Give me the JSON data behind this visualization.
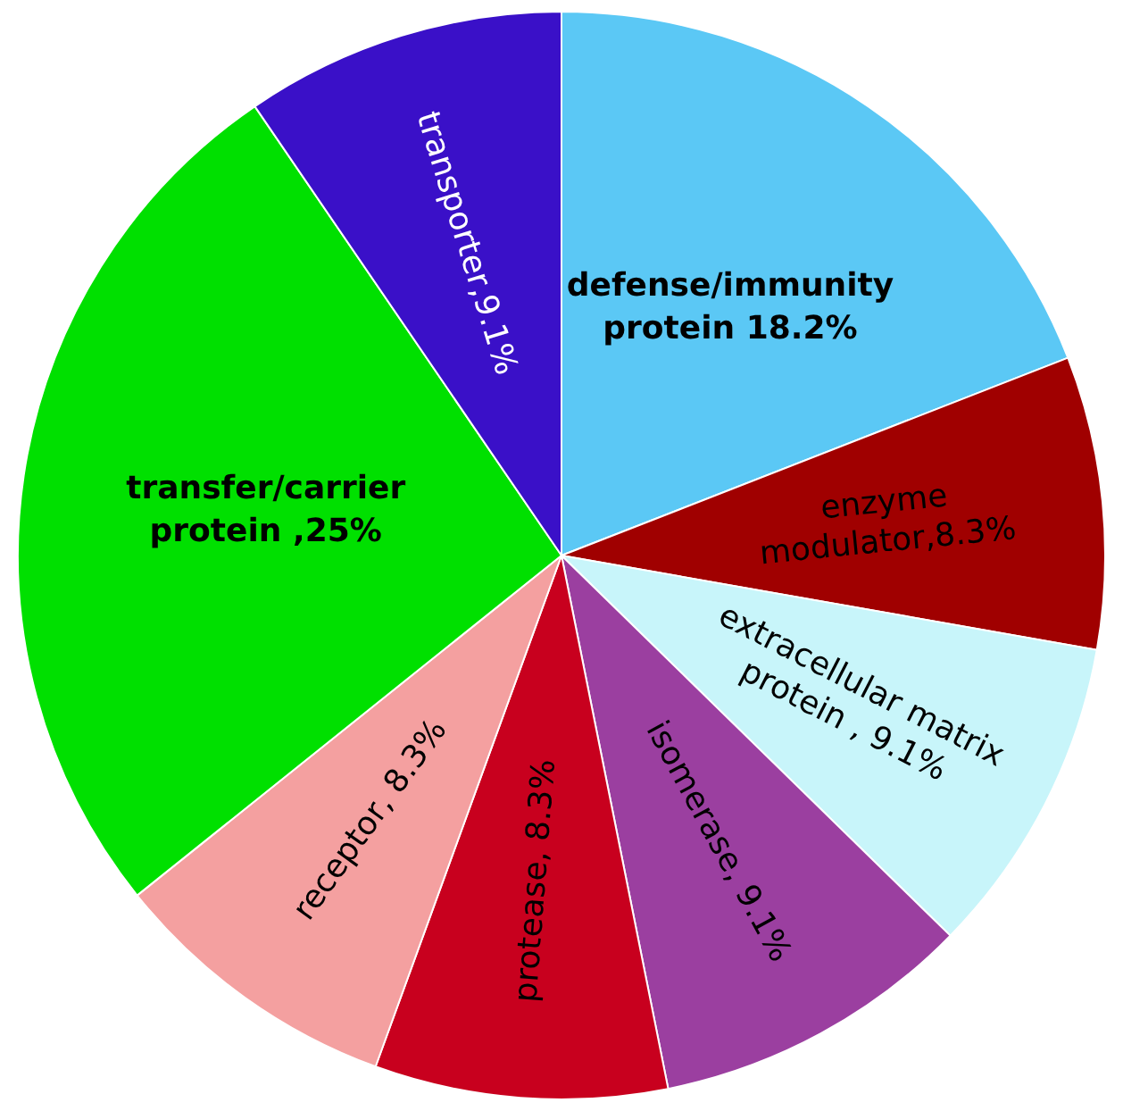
{
  "chart_data": {
    "type": "pie",
    "categories": [
      "defense/immunity protein 18.2%",
      "enzyme modulator,8.3%",
      "extracellular matrix protein , 9.1%",
      "isomerase, 9.1%",
      "protease, 8.3%",
      "receptor, 8.3%",
      "transfer/carrier protein ,25%",
      "transporter,9.1%"
    ],
    "values": [
      18.2,
      8.3,
      9.1,
      9.1,
      8.3,
      8.3,
      25,
      9.1
    ],
    "colors": [
      "#5bc8f5",
      "#a00000",
      "#c8f5fa",
      "#9b3fa0",
      "#c8001e",
      "#f4a0a0",
      "#00e000",
      "#3a10c8"
    ],
    "legend": false
  }
}
